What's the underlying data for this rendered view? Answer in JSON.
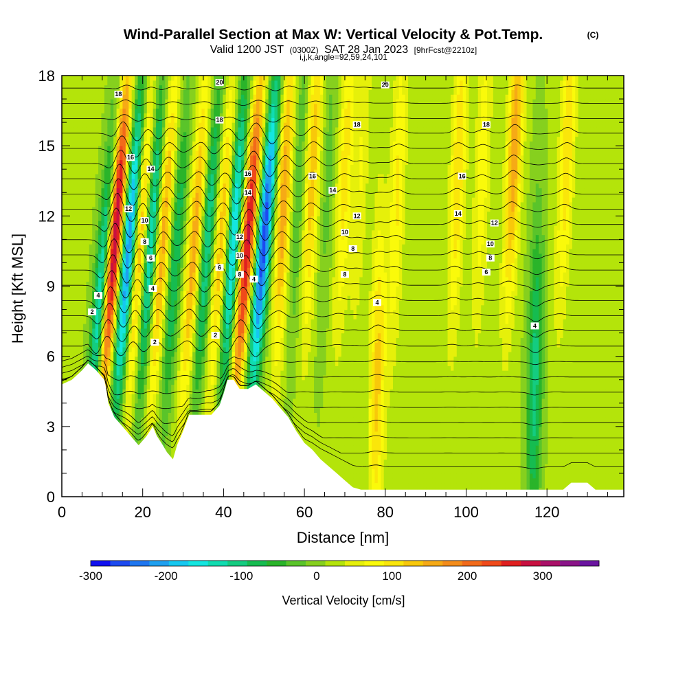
{
  "header": {
    "title": "Wind-Parallel Section at Max W: Vertical Velocity & Pot.Temp.",
    "copyright": "(C)",
    "valid_prefix": "Valid 1200 JST",
    "valid_utc": "(0300Z)",
    "valid_date": "SAT 28 Jan 2023",
    "forecast": "[9hrFcst@2210z]",
    "params": "i,j,k,angle=92,59,24,101"
  },
  "colors": {
    "palette": [
      "#1010f0",
      "#1d4af0",
      "#1f76f0",
      "#1fa0f0",
      "#16c8f0",
      "#14e6e0",
      "#10dcb0",
      "#14cc80",
      "#16bc50",
      "#2ab42a",
      "#5ac42a",
      "#86d01e",
      "#b4e40a",
      "#e6f00a",
      "#fafa0a",
      "#fae60a",
      "#f8c80a",
      "#f6aa16",
      "#f48c1a",
      "#f26a1a",
      "#f04a1a",
      "#e02020",
      "#c81040",
      "#aa1068",
      "#8a1488",
      "#6a14a0"
    ],
    "terrain": "#ffffff",
    "contour": "#000000"
  },
  "chart_data": {
    "type": "heatmap",
    "title": "Wind-Parallel Section at Max W: Vertical Velocity & Pot.Temp.",
    "xlabel": "Distance [nm]",
    "ylabel": "Height [Kft MSL]",
    "xlim": [
      0,
      139
    ],
    "ylim": [
      0,
      18
    ],
    "xticks": [
      0,
      20,
      40,
      60,
      80,
      100,
      120
    ],
    "yticks": [
      0,
      3,
      6,
      9,
      12,
      15,
      18
    ],
    "colorbar": {
      "label": "Vertical Velocity [cm/s]",
      "range": [
        -300,
        375
      ],
      "ticks": [
        -300,
        -200,
        -100,
        0,
        100,
        200,
        300
      ]
    },
    "terrain_profile": {
      "x": [
        0,
        2.5,
        5,
        6.5,
        8.5,
        10.5,
        11,
        11.5,
        12.5,
        13,
        15,
        17,
        19,
        21,
        22.5,
        23.5,
        25,
        26,
        27.5,
        28.5,
        30,
        31.5,
        34,
        37,
        39,
        40,
        41,
        42.5,
        44,
        46,
        48,
        50,
        52,
        54,
        56,
        58,
        60,
        62,
        64,
        66,
        68,
        70,
        72,
        74,
        76,
        78,
        80,
        82,
        84,
        86,
        88,
        90,
        100,
        110,
        120,
        122,
        124,
        126,
        128,
        130,
        132,
        134,
        137,
        139
      ],
      "height": [
        4.8,
        5.0,
        5.4,
        5.7,
        5.4,
        5.0,
        4.6,
        4.0,
        3.6,
        3.4,
        3.0,
        2.6,
        2.2,
        2.6,
        3.0,
        2.6,
        2.2,
        1.9,
        1.6,
        2.2,
        2.8,
        3.5,
        3.5,
        3.5,
        3.9,
        4.4,
        5.0,
        5.0,
        4.6,
        4.6,
        4.8,
        4.5,
        4.2,
        3.8,
        3.4,
        2.8,
        2.3,
        2.0,
        1.6,
        1.3,
        1.0,
        0.7,
        0.4,
        0.3,
        0.3,
        0.3,
        0.3,
        0.3,
        0.3,
        0.3,
        0.3,
        0.3,
        0.3,
        0.3,
        0.3,
        0.3,
        0.3,
        0.6,
        0.6,
        0.6,
        0.3,
        0.3,
        0.3,
        0.3
      ]
    },
    "w_features": [
      {
        "x": 10,
        "z": 9,
        "slope": 0.45,
        "amplitude": -200
      },
      {
        "x": 13,
        "z": 11,
        "slope": 0.45,
        "amplitude": 330
      },
      {
        "x": 16.5,
        "z": 10.5,
        "slope": 0.45,
        "amplitude": -250
      },
      {
        "x": 19.5,
        "z": 11,
        "slope": 0.4,
        "amplitude": 160
      },
      {
        "x": 22,
        "z": 11,
        "slope": 0.4,
        "amplitude": -180
      },
      {
        "x": 25,
        "z": 11,
        "slope": 0.4,
        "amplitude": 150
      },
      {
        "x": 28,
        "z": 10,
        "slope": 0.4,
        "amplitude": -110
      },
      {
        "x": 33,
        "z": 11,
        "slope": 0.4,
        "amplitude": 150
      },
      {
        "x": 36,
        "z": 11,
        "slope": 0.4,
        "amplitude": -140
      },
      {
        "x": 39.5,
        "z": 11,
        "slope": 0.4,
        "amplitude": 130
      },
      {
        "x": 42.5,
        "z": 11,
        "slope": 0.4,
        "amplitude": -200
      },
      {
        "x": 46,
        "z": 11,
        "slope": 0.45,
        "amplitude": 270
      },
      {
        "x": 50,
        "z": 11,
        "slope": 0.45,
        "amplitude": -280
      },
      {
        "x": 55,
        "z": 13,
        "slope": 0.25,
        "amplitude": 150
      },
      {
        "x": 58.5,
        "z": 13,
        "slope": 0.25,
        "amplitude": -60
      },
      {
        "x": 62,
        "z": 14,
        "slope": 0.25,
        "amplitude": 120
      },
      {
        "x": 66,
        "z": 14,
        "slope": 0.25,
        "amplitude": -40
      },
      {
        "x": 70,
        "z": 14,
        "slope": 0.25,
        "amplitude": 90
      },
      {
        "x": 74,
        "z": 14,
        "slope": 0.25,
        "amplitude": 50
      },
      {
        "x": 78,
        "z": 5,
        "slope": 0.1,
        "amplitude": 110
      },
      {
        "x": 83,
        "z": 13,
        "slope": 0.2,
        "amplitude": 80
      },
      {
        "x": 98,
        "z": 14,
        "slope": 0.2,
        "amplitude": 100
      },
      {
        "x": 104,
        "z": 14,
        "slope": 0.2,
        "amplitude": 70
      },
      {
        "x": 112,
        "z": 15,
        "slope": 0.25,
        "amplitude": 150
      },
      {
        "x": 117,
        "z": 5,
        "slope": 0.1,
        "amplitude": -120
      },
      {
        "x": 125,
        "z": 15,
        "slope": 0.25,
        "amplitude": 100
      }
    ],
    "isentropes": {
      "levels": [
        2,
        4,
        6,
        8,
        10,
        12,
        14,
        16,
        18,
        20
      ],
      "labels": [
        {
          "text": "18",
          "x": 14,
          "z": 17.2
        },
        {
          "text": "20",
          "x": 39,
          "z": 17.7
        },
        {
          "text": "20",
          "x": 80,
          "z": 17.6
        },
        {
          "text": "18",
          "x": 39,
          "z": 16.1
        },
        {
          "text": "18",
          "x": 73,
          "z": 15.9
        },
        {
          "text": "18",
          "x": 105,
          "z": 15.9
        },
        {
          "text": "16",
          "x": 17,
          "z": 14.5
        },
        {
          "text": "14",
          "x": 22,
          "z": 14.0
        },
        {
          "text": "16",
          "x": 46,
          "z": 13.8
        },
        {
          "text": "16",
          "x": 62,
          "z": 13.7
        },
        {
          "text": "16",
          "x": 99,
          "z": 13.7
        },
        {
          "text": "14",
          "x": 67,
          "z": 13.1
        },
        {
          "text": "12",
          "x": 16.5,
          "z": 12.3
        },
        {
          "text": "14",
          "x": 46,
          "z": 13.0
        },
        {
          "text": "12",
          "x": 73,
          "z": 12.0
        },
        {
          "text": "14",
          "x": 98,
          "z": 12.1
        },
        {
          "text": "12",
          "x": 107,
          "z": 11.7
        },
        {
          "text": "10",
          "x": 20.5,
          "z": 11.8
        },
        {
          "text": "12",
          "x": 44,
          "z": 11.1
        },
        {
          "text": "10",
          "x": 70,
          "z": 11.3
        },
        {
          "text": "10",
          "x": 106,
          "z": 10.8
        },
        {
          "text": "8",
          "x": 20.5,
          "z": 10.9
        },
        {
          "text": "10",
          "x": 44,
          "z": 10.3
        },
        {
          "text": "8",
          "x": 72,
          "z": 10.6
        },
        {
          "text": "8",
          "x": 106,
          "z": 10.2
        },
        {
          "text": "6",
          "x": 22,
          "z": 10.2
        },
        {
          "text": "6",
          "x": 39,
          "z": 9.8
        },
        {
          "text": "8",
          "x": 44,
          "z": 9.5
        },
        {
          "text": "4",
          "x": 47.5,
          "z": 9.3
        },
        {
          "text": "8",
          "x": 70,
          "z": 9.5
        },
        {
          "text": "6",
          "x": 105,
          "z": 9.6
        },
        {
          "text": "4",
          "x": 22.5,
          "z": 8.9
        },
        {
          "text": "4",
          "x": 9,
          "z": 8.6
        },
        {
          "text": "4",
          "x": 78,
          "z": 8.3
        },
        {
          "text": "2",
          "x": 7.5,
          "z": 7.9
        },
        {
          "text": "2",
          "x": 38,
          "z": 6.9
        },
        {
          "text": "2",
          "x": 23,
          "z": 6.6
        },
        {
          "text": "4",
          "x": 117,
          "z": 7.3
        }
      ]
    }
  }
}
